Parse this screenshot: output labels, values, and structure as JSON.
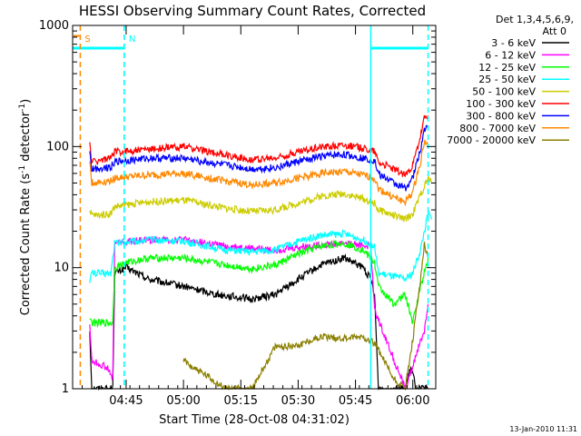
{
  "chart_data": {
    "type": "line",
    "title": "HESSI Observing Summary Count Rates, Corrected",
    "xlabel": "Start Time (28-Oct-08 04:31:02)",
    "ylabel": "Corrected Count Rate (s-1 detector-1)",
    "ylabel_parts": {
      "pre": "Corrected Count Rate (s",
      "sup1": "-1",
      "mid": " detector",
      "sup2": "-1",
      "post": ")"
    },
    "yscale": "log",
    "ylim": [
      1,
      1000
    ],
    "xlim_minutes_after_0431": [
      0,
      95
    ],
    "x_ticks": [
      {
        "label": "04:45",
        "t": 14
      },
      {
        "label": "05:00",
        "t": 29
      },
      {
        "label": "05:15",
        "t": 44
      },
      {
        "label": "05:30",
        "t": 59
      },
      {
        "label": "05:45",
        "t": 74
      },
      {
        "label": "06:00",
        "t": 89
      }
    ],
    "y_ticks": [
      {
        "label": "1",
        "value": 1
      },
      {
        "label": "10",
        "value": 10
      },
      {
        "label": "100",
        "value": 100
      },
      {
        "label": "1000",
        "value": 1000
      }
    ],
    "legend": {
      "header": [
        "Det 1,3,4,5,6,9,",
        "Att 0"
      ],
      "placement": "right"
    },
    "series": [
      {
        "name": "3 - 6 keV",
        "color": "#000000",
        "points": [
          [
            4.5,
            3
          ],
          [
            5,
            1
          ],
          [
            9,
            1
          ],
          [
            10.5,
            1
          ],
          [
            11,
            9
          ],
          [
            14,
            10
          ],
          [
            20,
            8
          ],
          [
            29,
            7
          ],
          [
            38,
            6
          ],
          [
            47,
            5.5
          ],
          [
            53,
            6
          ],
          [
            59,
            8
          ],
          [
            65,
            10.5
          ],
          [
            71,
            12
          ],
          [
            76,
            10
          ],
          [
            78,
            8
          ],
          [
            79,
            6
          ],
          [
            80,
            1
          ],
          [
            87,
            1
          ],
          [
            88.5,
            1.5
          ],
          [
            90,
            1
          ],
          [
            93,
            1
          ]
        ]
      },
      {
        "name": "6 - 12 keV",
        "color": "#ff00ff",
        "points": [
          [
            4.5,
            3.5
          ],
          [
            5,
            1.7
          ],
          [
            9,
            1.5
          ],
          [
            10.5,
            1.2
          ],
          [
            11,
            16
          ],
          [
            20,
            17
          ],
          [
            29,
            17
          ],
          [
            40,
            15
          ],
          [
            53,
            14
          ],
          [
            65,
            15.5
          ],
          [
            71,
            16
          ],
          [
            78,
            15
          ],
          [
            79,
            4.5
          ],
          [
            87,
            1
          ],
          [
            89,
            1.5
          ],
          [
            90,
            2
          ],
          [
            92,
            3
          ],
          [
            93,
            5
          ]
        ]
      },
      {
        "name": "12 - 25 keV",
        "color": "#00ff00",
        "points": [
          [
            4.5,
            4
          ],
          [
            5,
            3.5
          ],
          [
            10.5,
            3.5
          ],
          [
            11,
            10
          ],
          [
            14,
            11
          ],
          [
            20,
            12
          ],
          [
            29,
            12
          ],
          [
            40,
            10.5
          ],
          [
            47,
            9.8
          ],
          [
            53,
            10.5
          ],
          [
            59,
            13
          ],
          [
            65,
            15
          ],
          [
            71,
            16
          ],
          [
            76,
            14
          ],
          [
            79,
            11
          ],
          [
            80,
            7
          ],
          [
            84,
            5
          ],
          [
            87,
            6
          ],
          [
            89,
            3.5
          ],
          [
            91,
            7
          ],
          [
            93,
            12
          ]
        ]
      },
      {
        "name": "25 - 50 keV",
        "color": "#00ffff",
        "points": [
          [
            4.5,
            8
          ],
          [
            5,
            9
          ],
          [
            10,
            9
          ],
          [
            11,
            16
          ],
          [
            20,
            17
          ],
          [
            29,
            16.5
          ],
          [
            40,
            14
          ],
          [
            47,
            13.5
          ],
          [
            53,
            14
          ],
          [
            59,
            16.5
          ],
          [
            65,
            18.5
          ],
          [
            71,
            19
          ],
          [
            76,
            17
          ],
          [
            79,
            15
          ],
          [
            80,
            9
          ],
          [
            87,
            8
          ],
          [
            89,
            9
          ],
          [
            91,
            14
          ],
          [
            93,
            28
          ],
          [
            94,
            25
          ]
        ]
      },
      {
        "name": "50 - 100 keV",
        "color": "#cccc00",
        "points": [
          [
            4.5,
            28
          ],
          [
            6,
            27
          ],
          [
            10,
            28
          ],
          [
            11,
            32
          ],
          [
            20,
            35
          ],
          [
            29,
            36
          ],
          [
            40,
            31
          ],
          [
            47,
            29
          ],
          [
            53,
            30
          ],
          [
            59,
            34
          ],
          [
            65,
            39
          ],
          [
            71,
            41
          ],
          [
            76,
            37
          ],
          [
            79,
            34
          ],
          [
            80,
            30
          ],
          [
            87,
            25
          ],
          [
            89,
            28
          ],
          [
            91,
            40
          ],
          [
            93,
            55
          ],
          [
            94,
            50
          ]
        ]
      },
      {
        "name": "100 - 300 keV",
        "color": "#ff0000",
        "points": [
          [
            4.5,
            105
          ],
          [
            5,
            75
          ],
          [
            10,
            80
          ],
          [
            11,
            90
          ],
          [
            20,
            95
          ],
          [
            29,
            100
          ],
          [
            40,
            85
          ],
          [
            47,
            78
          ],
          [
            53,
            80
          ],
          [
            59,
            90
          ],
          [
            65,
            100
          ],
          [
            71,
            103
          ],
          [
            76,
            97
          ],
          [
            79,
            92
          ],
          [
            80,
            75
          ],
          [
            84,
            65
          ],
          [
            87,
            58
          ],
          [
            89,
            70
          ],
          [
            91,
            120
          ],
          [
            92,
            170
          ],
          [
            93,
            180
          ]
        ]
      },
      {
        "name": "300 - 800 keV",
        "color": "#0000ff",
        "points": [
          [
            4.5,
            90
          ],
          [
            5,
            65
          ],
          [
            10,
            68
          ],
          [
            11,
            75
          ],
          [
            20,
            80
          ],
          [
            29,
            80
          ],
          [
            40,
            70
          ],
          [
            47,
            65
          ],
          [
            53,
            67
          ],
          [
            59,
            75
          ],
          [
            65,
            83
          ],
          [
            71,
            86
          ],
          [
            76,
            80
          ],
          [
            79,
            77
          ],
          [
            80,
            60
          ],
          [
            84,
            50
          ],
          [
            87,
            45
          ],
          [
            89,
            55
          ],
          [
            91,
            95
          ],
          [
            92,
            140
          ],
          [
            93,
            140
          ]
        ]
      },
      {
        "name": "800 - 7000 keV",
        "color": "#ff8800",
        "points": [
          [
            4.5,
            75
          ],
          [
            5,
            50
          ],
          [
            10,
            52
          ],
          [
            11,
            55
          ],
          [
            20,
            58
          ],
          [
            29,
            60
          ],
          [
            40,
            52
          ],
          [
            47,
            48
          ],
          [
            53,
            50
          ],
          [
            59,
            55
          ],
          [
            65,
            60
          ],
          [
            71,
            62
          ],
          [
            76,
            58
          ],
          [
            79,
            55
          ],
          [
            80,
            45
          ],
          [
            84,
            38
          ],
          [
            87,
            35
          ],
          [
            89,
            42
          ],
          [
            91,
            75
          ],
          [
            92,
            110
          ],
          [
            93,
            105
          ]
        ]
      },
      {
        "name": "7000 - 20000 keV",
        "color": "#8b8000",
        "points": [
          [
            29,
            1.7
          ],
          [
            40,
            1
          ],
          [
            47,
            1
          ],
          [
            50,
            1.5
          ],
          [
            53,
            2.2
          ],
          [
            59,
            2.3
          ],
          [
            65,
            2.7
          ],
          [
            71,
            2.6
          ],
          [
            76,
            2.7
          ],
          [
            79,
            2.4
          ],
          [
            84,
            1.2
          ],
          [
            87,
            1
          ],
          [
            89,
            2.5
          ],
          [
            91,
            8
          ],
          [
            92,
            16
          ],
          [
            93,
            12
          ]
        ]
      }
    ],
    "annotations": [
      {
        "label": "S",
        "t": 2,
        "color": "#ff8800",
        "style": "dashed-vertical"
      },
      {
        "label": "N",
        "t": 13.5,
        "color": "#00ffff",
        "style": "dashed-vertical"
      }
    ],
    "flags": {
      "night_bars": [
        [
          0,
          13.5
        ],
        [
          78,
          93
        ]
      ],
      "night_color": "#00ffff",
      "saa_color": "#ff8800",
      "solid_cyan_vertical": [
        78
      ],
      "dashed_cyan_vertical": [
        13.5,
        93
      ]
    }
  },
  "footer_date": "13-Jan-2010 11:31"
}
